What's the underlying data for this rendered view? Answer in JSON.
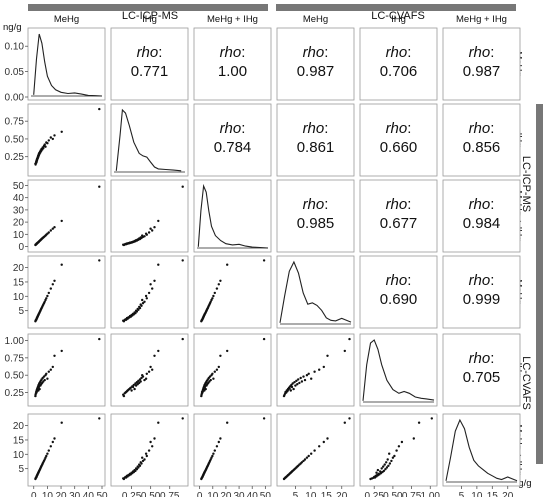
{
  "chart_data": {
    "type": "scatter-matrix",
    "unit": "ng/g",
    "groups": [
      {
        "name": "LC-ICP-MS",
        "vars": [
          0,
          1,
          2
        ]
      },
      {
        "name": "LC-CVAFS",
        "vars": [
          3,
          4,
          5
        ]
      }
    ],
    "variables": [
      {
        "label": "MeHg",
        "min": 0,
        "max": 0.13,
        "ticks": [
          0,
          0.05,
          0.1
        ],
        "tick_labels": [
          "0.00",
          "0.05",
          "0.10"
        ],
        "axis_ticks": [
          0,
          10,
          20,
          30,
          40,
          50
        ],
        "axis_range": [
          -2,
          50
        ]
      },
      {
        "label": "IHg",
        "min": 0.05,
        "max": 0.95,
        "ticks": [
          0.25,
          0.5,
          0.75
        ],
        "tick_labels": [
          "0.25",
          "0.50",
          "0.75"
        ],
        "axis_range": [
          0.02,
          0.95
        ]
      },
      {
        "label": "MeHg + IHg",
        "min": -2,
        "max": 52,
        "ticks": [
          0,
          10,
          20,
          30,
          40,
          50
        ],
        "tick_labels": [
          "0",
          "10",
          "20",
          "30",
          "40",
          "50"
        ],
        "axis_range": [
          -2,
          52
        ]
      },
      {
        "label": "MeHg",
        "min": 0,
        "max": 23,
        "ticks": [
          5,
          10,
          15,
          20
        ],
        "tick_labels": [
          "5",
          "10",
          "15",
          "20"
        ],
        "axis_range": [
          0,
          23
        ]
      },
      {
        "label": "IHg",
        "min": 0.1,
        "max": 1.05,
        "ticks": [
          0.25,
          0.5,
          0.75,
          1.0
        ],
        "tick_labels": [
          "0.25",
          "0.50",
          "0.75",
          "1.00"
        ],
        "axis_range": [
          0.1,
          1.05
        ]
      },
      {
        "label": "MeHg + IHg",
        "min": 0,
        "max": 23,
        "ticks": [
          5,
          10,
          15,
          20
        ],
        "tick_labels": [
          "5",
          "10",
          "15",
          "20"
        ],
        "axis_range": [
          0,
          23
        ]
      }
    ],
    "correlations": [
      {
        "row": 0,
        "col": 1,
        "rho": "0.771"
      },
      {
        "row": 0,
        "col": 2,
        "rho": "1.00"
      },
      {
        "row": 0,
        "col": 3,
        "rho": "0.987"
      },
      {
        "row": 0,
        "col": 4,
        "rho": "0.706"
      },
      {
        "row": 0,
        "col": 5,
        "rho": "0.987"
      },
      {
        "row": 1,
        "col": 2,
        "rho": "0.784"
      },
      {
        "row": 1,
        "col": 3,
        "rho": "0.861"
      },
      {
        "row": 1,
        "col": 4,
        "rho": "0.660"
      },
      {
        "row": 1,
        "col": 5,
        "rho": "0.856"
      },
      {
        "row": 2,
        "col": 3,
        "rho": "0.985"
      },
      {
        "row": 2,
        "col": 4,
        "rho": "0.677"
      },
      {
        "row": 2,
        "col": 5,
        "rho": "0.984"
      },
      {
        "row": 3,
        "col": 4,
        "rho": "0.690"
      },
      {
        "row": 3,
        "col": 5,
        "rho": "0.999"
      },
      {
        "row": 4,
        "col": 5,
        "rho": "0.705"
      }
    ],
    "rho_label": "rho",
    "density": [
      {
        "var": 0,
        "x": [
          0,
          2,
          4,
          6,
          8,
          10,
          13,
          16,
          20,
          25,
          30,
          35,
          40,
          45,
          50
        ],
        "y": [
          0.02,
          0.6,
          1.0,
          0.85,
          0.55,
          0.32,
          0.17,
          0.1,
          0.06,
          0.04,
          0.05,
          0.03,
          0.01,
          0.005,
          0
        ]
      },
      {
        "var": 1,
        "x": [
          0.05,
          0.1,
          0.13,
          0.17,
          0.22,
          0.28,
          0.35,
          0.4,
          0.45,
          0.5,
          0.55,
          0.6,
          0.7,
          0.8,
          0.9
        ],
        "y": [
          0.02,
          0.6,
          1.0,
          0.95,
          0.75,
          0.48,
          0.3,
          0.26,
          0.24,
          0.16,
          0.08,
          0.05,
          0.04,
          0.03,
          0.02
        ]
      },
      {
        "var": 2,
        "x": [
          -1,
          1,
          3,
          5,
          7,
          9,
          12,
          16,
          20,
          25,
          30,
          35,
          40,
          46,
          52
        ],
        "y": [
          0.02,
          0.6,
          1.0,
          0.9,
          0.6,
          0.35,
          0.2,
          0.12,
          0.07,
          0.05,
          0.06,
          0.03,
          0.015,
          0.008,
          0
        ]
      },
      {
        "var": 3,
        "x": [
          0,
          1.5,
          3,
          4.5,
          6,
          7.5,
          9,
          10.5,
          12,
          13.5,
          15,
          16.5,
          18,
          20,
          22,
          23
        ],
        "y": [
          0.02,
          0.45,
          0.85,
          1.0,
          0.82,
          0.5,
          0.32,
          0.34,
          0.3,
          0.22,
          0.1,
          0.06,
          0.05,
          0.09,
          0.05,
          0.03
        ]
      },
      {
        "var": 4,
        "x": [
          0.1,
          0.15,
          0.2,
          0.25,
          0.3,
          0.35,
          0.42,
          0.5,
          0.58,
          0.65,
          0.72,
          0.8,
          0.88,
          0.95,
          1.05
        ],
        "y": [
          0.02,
          0.6,
          0.95,
          1.0,
          0.85,
          0.6,
          0.35,
          0.2,
          0.14,
          0.17,
          0.14,
          0.08,
          0.06,
          0.05,
          0.03
        ]
      },
      {
        "var": 5,
        "x": [
          0,
          1.5,
          3,
          4.5,
          6,
          7.5,
          9,
          10.5,
          12,
          13.5,
          15,
          16.5,
          18,
          20,
          22,
          23
        ],
        "y": [
          0.02,
          0.4,
          0.82,
          1.0,
          0.86,
          0.56,
          0.35,
          0.26,
          0.2,
          0.14,
          0.1,
          0.06,
          0.04,
          0.08,
          0.04,
          0.02
        ]
      }
    ],
    "samples": [
      [
        1.2,
        0.15,
        1.3,
        1.3,
        0.2,
        1.4
      ],
      [
        1.4,
        0.14,
        1.5,
        1.5,
        0.22,
        1.6
      ],
      [
        1.6,
        0.16,
        1.7,
        1.7,
        0.24,
        1.8
      ],
      [
        1.8,
        0.18,
        1.9,
        1.8,
        0.26,
        1.9
      ],
      [
        2.0,
        0.17,
        2.1,
        2.0,
        0.25,
        2.1
      ],
      [
        2.1,
        0.2,
        2.3,
        2.2,
        0.28,
        2.3
      ],
      [
        2.3,
        0.19,
        2.5,
        2.4,
        0.27,
        2.5
      ],
      [
        2.5,
        0.22,
        2.7,
        2.6,
        0.3,
        2.7
      ],
      [
        2.6,
        0.21,
        2.8,
        2.7,
        0.29,
        2.8
      ],
      [
        2.8,
        0.24,
        3.0,
        2.9,
        0.32,
        3.0
      ],
      [
        3.0,
        0.23,
        3.2,
        3.1,
        0.31,
        3.2
      ],
      [
        3.2,
        0.26,
        3.4,
        3.3,
        0.34,
        3.4
      ],
      [
        3.4,
        0.25,
        3.6,
        3.5,
        0.28,
        3.6
      ],
      [
        3.6,
        0.28,
        3.8,
        3.7,
        0.36,
        3.8
      ],
      [
        3.8,
        0.27,
        4.0,
        3.9,
        0.33,
        4.0
      ],
      [
        4.0,
        0.3,
        4.3,
        4.1,
        0.38,
        4.2
      ],
      [
        4.3,
        0.29,
        4.6,
        4.4,
        0.3,
        4.5
      ],
      [
        4.6,
        0.32,
        4.9,
        4.7,
        0.4,
        4.8
      ],
      [
        4.9,
        0.31,
        5.2,
        5.0,
        0.35,
        5.1
      ],
      [
        5.2,
        0.34,
        5.5,
        5.3,
        0.42,
        5.4
      ],
      [
        5.5,
        0.33,
        5.8,
        5.6,
        0.37,
        5.7
      ],
      [
        5.8,
        0.36,
        6.2,
        5.9,
        0.44,
        6.0
      ],
      [
        6.2,
        0.35,
        6.6,
        6.3,
        0.39,
        6.4
      ],
      [
        6.6,
        0.38,
        7.0,
        6.7,
        0.46,
        6.8
      ],
      [
        7.0,
        0.37,
        7.4,
        7.1,
        0.41,
        7.2
      ],
      [
        7.5,
        0.4,
        7.9,
        7.6,
        0.48,
        7.7
      ],
      [
        8.0,
        0.42,
        8.4,
        8.1,
        0.43,
        8.2
      ],
      [
        8.6,
        0.39,
        9.0,
        8.7,
        0.5,
        8.8
      ],
      [
        9.2,
        0.45,
        9.7,
        9.3,
        0.52,
        9.4
      ],
      [
        10.0,
        0.44,
        10.5,
        10.1,
        0.45,
        10.2
      ],
      [
        11.0,
        0.48,
        11.5,
        11.2,
        0.55,
        11.3
      ],
      [
        12.5,
        0.52,
        13.1,
        12.7,
        0.58,
        12.8
      ],
      [
        14.0,
        0.5,
        14.6,
        14.2,
        0.62,
        14.3
      ],
      [
        15.2,
        0.55,
        15.8,
        15.4,
        0.78,
        15.5
      ],
      [
        20.5,
        0.6,
        21.0,
        21.0,
        0.85,
        21.0
      ],
      [
        48.0,
        0.92,
        49.0,
        22.5,
        1.02,
        22.5
      ]
    ]
  }
}
